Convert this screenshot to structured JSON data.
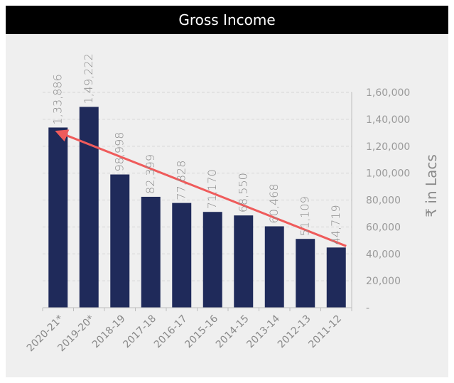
{
  "chart_data": {
    "type": "bar",
    "title": "Gross Income",
    "categories": [
      "2020-21*",
      "2019-20*",
      "2018-19",
      "2017-18",
      "2016-17",
      "2015-16",
      "2014-15",
      "2013-14",
      "2012-13",
      "2011-12"
    ],
    "values": [
      133886,
      149222,
      98998,
      82399,
      77828,
      71170,
      68550,
      60468,
      51109,
      44719
    ],
    "value_labels": [
      "1,33,886",
      "1,49,222",
      "98,998",
      "82,399",
      "77,828",
      "71,170",
      "68,550",
      "60,468",
      "51,109",
      "44,719"
    ],
    "ylabel": "₹ in Lacs",
    "ylim": [
      0,
      160000
    ],
    "yticks": [
      0,
      20000,
      40000,
      60000,
      80000,
      100000,
      120000,
      140000,
      160000
    ],
    "ytick_labels": [
      "-",
      "20,000",
      "40,000",
      "60,000",
      "80,000",
      "1,00,000",
      "1,20,000",
      "1,40,000",
      "1,60,000"
    ],
    "y_axis_position": "right",
    "grid": true,
    "trend_arrow": {
      "from": "2011-12",
      "to": "2020-21*",
      "direction": "toward-left"
    },
    "colors": {
      "bar": "#1f2a5a",
      "trend": "#ef5b5b",
      "header_bg": "#000000",
      "panel_bg": "#efefef"
    }
  }
}
